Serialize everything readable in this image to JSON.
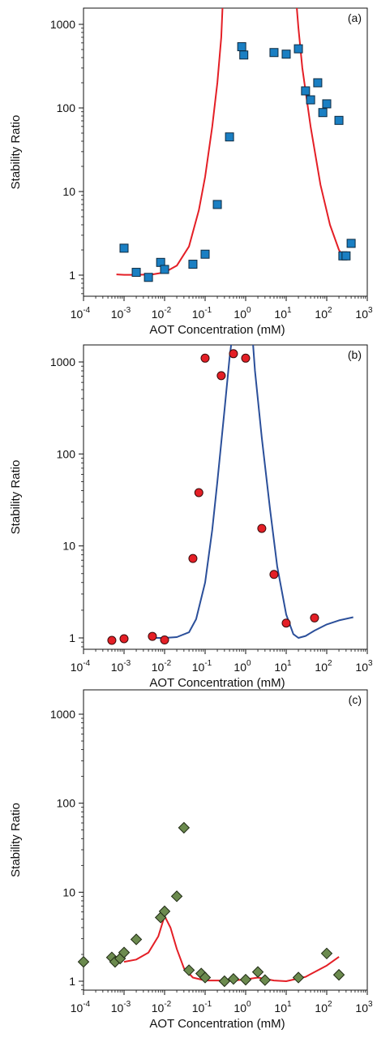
{
  "chart_data": [
    {
      "type": "scatter",
      "panel_label": "(a)",
      "xlabel": "AOT Concentration (mM)",
      "ylabel": "Stability Ratio",
      "x_scale": "log",
      "y_scale": "log",
      "xlim": [
        0.0001,
        1000
      ],
      "ylim": [
        1,
        1000
      ],
      "x_ticks": [
        {
          "base": "10",
          "exp": "-4",
          "value": 0.0001
        },
        {
          "base": "10",
          "exp": "-3",
          "value": 0.001
        },
        {
          "base": "10",
          "exp": "-2",
          "value": 0.01
        },
        {
          "base": "10",
          "exp": "-1",
          "value": 0.1
        },
        {
          "base": "10",
          "exp": "0",
          "value": 1
        },
        {
          "base": "10",
          "exp": "1",
          "value": 10
        },
        {
          "base": "10",
          "exp": "2",
          "value": 100
        },
        {
          "base": "10",
          "exp": "3",
          "value": 1000
        }
      ],
      "y_ticks": [
        {
          "label": "1",
          "value": 1
        },
        {
          "label": "10",
          "value": 10
        },
        {
          "label": "100",
          "value": 100
        },
        {
          "label": "1000",
          "value": 1000
        }
      ],
      "marker": {
        "shape": "square",
        "fill": "#1a7fc3",
        "stroke": "#0d2a40"
      },
      "curve_color": "#e41f26",
      "points": [
        {
          "x": 0.001,
          "y": 2.1
        },
        {
          "x": 0.002,
          "y": 1.08
        },
        {
          "x": 0.004,
          "y": 0.94
        },
        {
          "x": 0.008,
          "y": 1.42
        },
        {
          "x": 0.01,
          "y": 1.17
        },
        {
          "x": 0.05,
          "y": 1.35
        },
        {
          "x": 0.1,
          "y": 1.78
        },
        {
          "x": 0.2,
          "y": 7.0
        },
        {
          "x": 0.4,
          "y": 45
        },
        {
          "x": 0.8,
          "y": 540
        },
        {
          "x": 0.9,
          "y": 430
        },
        {
          "x": 5,
          "y": 460
        },
        {
          "x": 10,
          "y": 440
        },
        {
          "x": 20,
          "y": 510
        },
        {
          "x": 30,
          "y": 160
        },
        {
          "x": 40,
          "y": 125
        },
        {
          "x": 60,
          "y": 200
        },
        {
          "x": 80,
          "y": 88
        },
        {
          "x": 100,
          "y": 112
        },
        {
          "x": 200,
          "y": 71
        },
        {
          "x": 250,
          "y": 1.7
        },
        {
          "x": 300,
          "y": 1.7
        },
        {
          "x": 400,
          "y": 2.4
        }
      ],
      "curve": [
        {
          "x": 0.00065,
          "y": 1.02
        },
        {
          "x": 0.001,
          "y": 1.01
        },
        {
          "x": 0.002,
          "y": 1.01
        },
        {
          "x": 0.005,
          "y": 1.02
        },
        {
          "x": 0.01,
          "y": 1.08
        },
        {
          "x": 0.02,
          "y": 1.3
        },
        {
          "x": 0.04,
          "y": 2.2
        },
        {
          "x": 0.07,
          "y": 6
        },
        {
          "x": 0.1,
          "y": 15
        },
        {
          "x": 0.15,
          "y": 60
        },
        {
          "x": 0.2,
          "y": 200
        },
        {
          "x": 0.25,
          "y": 700
        },
        {
          "x": 0.27,
          "y": 1700
        },
        {
          "x": 18,
          "y": 1700
        },
        {
          "x": 20,
          "y": 900
        },
        {
          "x": 25,
          "y": 300
        },
        {
          "x": 40,
          "y": 60
        },
        {
          "x": 70,
          "y": 12
        },
        {
          "x": 120,
          "y": 4
        },
        {
          "x": 200,
          "y": 2.0
        },
        {
          "x": 260,
          "y": 1.65
        }
      ]
    },
    {
      "type": "scatter",
      "panel_label": "(b)",
      "xlabel": "AOT Concentration (mM)",
      "ylabel": "Stability Ratio",
      "x_scale": "log",
      "y_scale": "log",
      "xlim": [
        0.0001,
        1000
      ],
      "ylim": [
        1,
        1000
      ],
      "x_ticks": [
        {
          "base": "10",
          "exp": "-4",
          "value": 0.0001
        },
        {
          "base": "10",
          "exp": "-3",
          "value": 0.001
        },
        {
          "base": "10",
          "exp": "-2",
          "value": 0.01
        },
        {
          "base": "10",
          "exp": "-1",
          "value": 0.1
        },
        {
          "base": "10",
          "exp": "0",
          "value": 1
        },
        {
          "base": "10",
          "exp": "1",
          "value": 10
        },
        {
          "base": "10",
          "exp": "2",
          "value": 100
        },
        {
          "base": "10",
          "exp": "3",
          "value": 1000
        }
      ],
      "y_ticks": [
        {
          "label": "1",
          "value": 1
        },
        {
          "label": "10",
          "value": 10
        },
        {
          "label": "100",
          "value": 100
        },
        {
          "label": "1000",
          "value": 1000
        }
      ],
      "marker": {
        "shape": "circle",
        "fill": "#e41f26",
        "stroke": "#3a0a0a"
      },
      "curve_color": "#2b4f9a",
      "points": [
        {
          "x": 0.0005,
          "y": 0.94
        },
        {
          "x": 0.001,
          "y": 0.98
        },
        {
          "x": 0.005,
          "y": 1.04
        },
        {
          "x": 0.01,
          "y": 0.95
        },
        {
          "x": 0.05,
          "y": 7.3
        },
        {
          "x": 0.07,
          "y": 38
        },
        {
          "x": 0.1,
          "y": 1100
        },
        {
          "x": 0.25,
          "y": 710
        },
        {
          "x": 0.5,
          "y": 1230
        },
        {
          "x": 1,
          "y": 1100
        },
        {
          "x": 2.5,
          "y": 15.5
        },
        {
          "x": 5,
          "y": 4.9
        },
        {
          "x": 10,
          "y": 1.45
        },
        {
          "x": 50,
          "y": 1.65
        }
      ],
      "curve": [
        {
          "x": 0.005,
          "y": 1.0
        },
        {
          "x": 0.01,
          "y": 1.0
        },
        {
          "x": 0.02,
          "y": 1.02
        },
        {
          "x": 0.04,
          "y": 1.15
        },
        {
          "x": 0.06,
          "y": 1.6
        },
        {
          "x": 0.1,
          "y": 4
        },
        {
          "x": 0.15,
          "y": 15
        },
        {
          "x": 0.2,
          "y": 50
        },
        {
          "x": 0.3,
          "y": 300
        },
        {
          "x": 0.4,
          "y": 1100
        },
        {
          "x": 0.45,
          "y": 1700
        },
        {
          "x": 1.5,
          "y": 1700
        },
        {
          "x": 1.7,
          "y": 800
        },
        {
          "x": 2.5,
          "y": 150
        },
        {
          "x": 4,
          "y": 25
        },
        {
          "x": 6,
          "y": 6
        },
        {
          "x": 10,
          "y": 1.8
        },
        {
          "x": 15,
          "y": 1.1
        },
        {
          "x": 20,
          "y": 1.0
        },
        {
          "x": 30,
          "y": 1.05
        },
        {
          "x": 50,
          "y": 1.2
        },
        {
          "x": 100,
          "y": 1.4
        },
        {
          "x": 200,
          "y": 1.55
        },
        {
          "x": 450,
          "y": 1.68
        }
      ]
    },
    {
      "type": "scatter",
      "panel_label": "(c)",
      "xlabel": "AOT Concentration (mM)",
      "ylabel": "Stability Ratio",
      "x_scale": "log",
      "y_scale": "log",
      "xlim": [
        0.0001,
        1000
      ],
      "ylim": [
        1,
        1000
      ],
      "x_ticks": [
        {
          "base": "10",
          "exp": "-4",
          "value": 0.0001
        },
        {
          "base": "10",
          "exp": "-3",
          "value": 0.001
        },
        {
          "base": "10",
          "exp": "-2",
          "value": 0.01
        },
        {
          "base": "10",
          "exp": "-1",
          "value": 0.1
        },
        {
          "base": "10",
          "exp": "0",
          "value": 1
        },
        {
          "base": "10",
          "exp": "1",
          "value": 10
        },
        {
          "base": "10",
          "exp": "2",
          "value": 100
        },
        {
          "base": "10",
          "exp": "3",
          "value": 1000
        }
      ],
      "y_ticks": [
        {
          "label": "1",
          "value": 1
        },
        {
          "label": "10",
          "value": 10
        },
        {
          "label": "100",
          "value": 100
        },
        {
          "label": "1000",
          "value": 1000
        }
      ],
      "marker": {
        "shape": "diamond",
        "fill": "#6b8a4e",
        "stroke": "#1f2a14"
      },
      "curve_color": "#e41f26",
      "points": [
        {
          "x": 0.0001,
          "y": 1.65
        },
        {
          "x": 0.0005,
          "y": 1.85
        },
        {
          "x": 0.0006,
          "y": 1.65
        },
        {
          "x": 0.0008,
          "y": 1.8
        },
        {
          "x": 0.001,
          "y": 2.1
        },
        {
          "x": 0.002,
          "y": 2.95
        },
        {
          "x": 0.008,
          "y": 5.2
        },
        {
          "x": 0.01,
          "y": 6.1
        },
        {
          "x": 0.02,
          "y": 9.0
        },
        {
          "x": 0.03,
          "y": 53
        },
        {
          "x": 0.04,
          "y": 1.33
        },
        {
          "x": 0.08,
          "y": 1.22
        },
        {
          "x": 0.1,
          "y": 1.1
        },
        {
          "x": 0.3,
          "y": 1.0
        },
        {
          "x": 0.5,
          "y": 1.06
        },
        {
          "x": 1,
          "y": 1.04
        },
        {
          "x": 2,
          "y": 1.27
        },
        {
          "x": 3,
          "y": 1.03
        },
        {
          "x": 20,
          "y": 1.1
        },
        {
          "x": 100,
          "y": 2.05
        },
        {
          "x": 200,
          "y": 1.18
        }
      ],
      "curve": [
        {
          "x": 0.001,
          "y": 1.65
        },
        {
          "x": 0.002,
          "y": 1.75
        },
        {
          "x": 0.004,
          "y": 2.1
        },
        {
          "x": 0.007,
          "y": 3.2
        },
        {
          "x": 0.01,
          "y": 5.4
        },
        {
          "x": 0.014,
          "y": 4.0
        },
        {
          "x": 0.02,
          "y": 2.3
        },
        {
          "x": 0.03,
          "y": 1.4
        },
        {
          "x": 0.05,
          "y": 1.1
        },
        {
          "x": 0.1,
          "y": 1.02
        },
        {
          "x": 0.5,
          "y": 1.02
        },
        {
          "x": 1,
          "y": 1.05
        },
        {
          "x": 2,
          "y": 1.1
        },
        {
          "x": 5,
          "y": 1.02
        },
        {
          "x": 10,
          "y": 1.0
        },
        {
          "x": 30,
          "y": 1.12
        },
        {
          "x": 100,
          "y": 1.5
        },
        {
          "x": 200,
          "y": 1.88
        }
      ]
    }
  ]
}
